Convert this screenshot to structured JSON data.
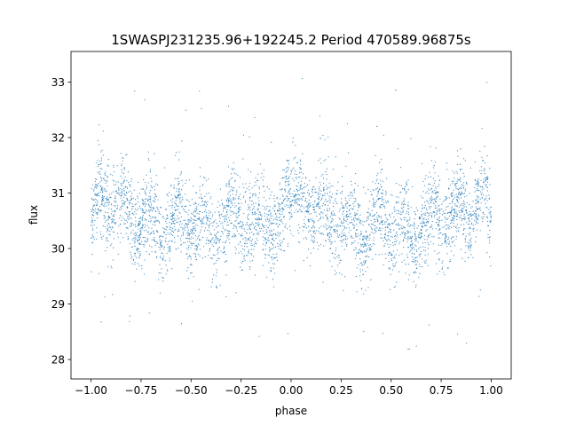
{
  "chart_data": {
    "type": "scatter",
    "title": "1SWASPJ231235.96+192245.2 Period 470589.96875s",
    "xlabel": "phase",
    "ylabel": "flux",
    "xlim": [
      -1.1,
      1.1
    ],
    "ylim": [
      27.65,
      33.55
    ],
    "xticks": [
      -1.0,
      -0.75,
      -0.5,
      -0.25,
      0.0,
      0.25,
      0.5,
      0.75,
      1.0
    ],
    "xtick_labels": [
      "−1.00",
      "−0.75",
      "−0.50",
      "−0.25",
      "0.00",
      "0.25",
      "0.50",
      "0.75",
      "1.00"
    ],
    "yticks": [
      28,
      29,
      30,
      31,
      32,
      33
    ],
    "ytick_labels": [
      "28",
      "29",
      "30",
      "31",
      "32",
      "33"
    ],
    "grid": false,
    "legend": "none",
    "marker_color": "#1f77b4",
    "series": [
      {
        "points_note_free": true,
        "envelope": [
          {
            "phase": -1.0,
            "center": 30.4
          },
          {
            "phase": -0.96,
            "center": 31.2
          },
          {
            "phase": -0.9,
            "center": 30.6
          },
          {
            "phase": -0.84,
            "center": 31.0
          },
          {
            "phase": -0.78,
            "center": 30.2
          },
          {
            "phase": -0.7,
            "center": 30.8
          },
          {
            "phase": -0.64,
            "center": 30.0
          },
          {
            "phase": -0.56,
            "center": 30.9
          },
          {
            "phase": -0.5,
            "center": 30.1
          },
          {
            "phase": -0.44,
            "center": 30.7
          },
          {
            "phase": -0.38,
            "center": 30.0
          },
          {
            "phase": -0.3,
            "center": 30.8
          },
          {
            "phase": -0.24,
            "center": 30.3
          },
          {
            "phase": -0.16,
            "center": 30.6
          },
          {
            "phase": -0.08,
            "center": 30.2
          },
          {
            "phase": -0.02,
            "center": 31.0
          },
          {
            "phase": 0.04,
            "center": 31.1
          },
          {
            "phase": 0.1,
            "center": 30.4
          },
          {
            "phase": 0.16,
            "center": 30.9
          },
          {
            "phase": 0.22,
            "center": 30.3
          },
          {
            "phase": 0.3,
            "center": 30.7
          },
          {
            "phase": 0.36,
            "center": 30.0
          },
          {
            "phase": 0.44,
            "center": 30.9
          },
          {
            "phase": 0.5,
            "center": 30.1
          },
          {
            "phase": 0.56,
            "center": 30.6
          },
          {
            "phase": 0.62,
            "center": 30.0
          },
          {
            "phase": 0.7,
            "center": 30.8
          },
          {
            "phase": 0.76,
            "center": 30.3
          },
          {
            "phase": 0.84,
            "center": 30.9
          },
          {
            "phase": 0.9,
            "center": 30.4
          },
          {
            "phase": 0.96,
            "center": 31.2
          },
          {
            "phase": 1.0,
            "center": 30.5
          }
        ]
      }
    ]
  }
}
